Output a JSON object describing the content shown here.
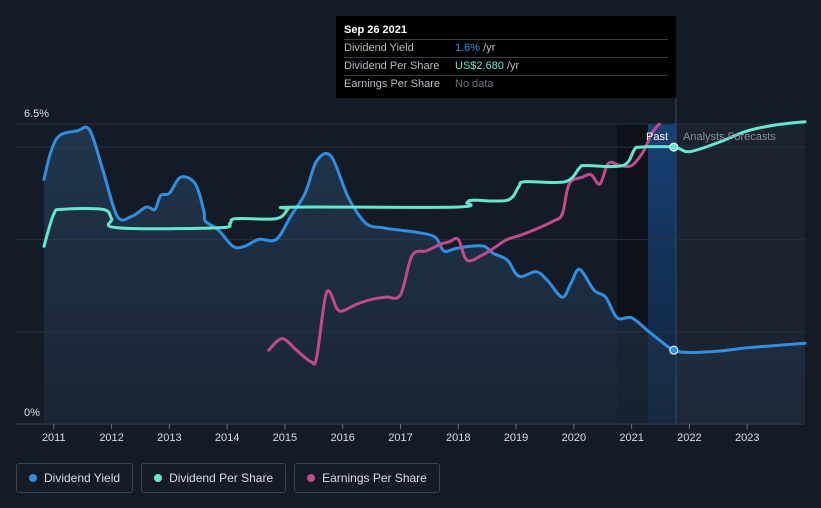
{
  "tooltip": {
    "date": "Sep 26 2021",
    "rows": [
      {
        "label": "Dividend Yield",
        "value": "1.6%",
        "unit": "/yr"
      },
      {
        "label": "Dividend Per Share",
        "value": "US$2.680",
        "unit": "/yr"
      },
      {
        "label": "Earnings Per Share",
        "value": "No data",
        "unit": ""
      }
    ]
  },
  "labels": {
    "past": "Past",
    "forecast": "Analysts Forecasts"
  },
  "legend": [
    {
      "label": "Dividend Yield",
      "color": "#2f8fe0"
    },
    {
      "label": "Dividend Per Share",
      "color": "#63e8cf"
    },
    {
      "label": "Earnings Per Share",
      "color": "#c04b8c"
    }
  ],
  "chart_data": {
    "type": "line",
    "y_axis_labels": {
      "top": "6.5%",
      "bottom": "0%"
    },
    "ylim": [
      0,
      6.5
    ],
    "xlim": [
      2010.9,
      2024.0
    ],
    "x_ticks": [
      "2011",
      "2012",
      "2013",
      "2014",
      "2015",
      "2016",
      "2017",
      "2018",
      "2019",
      "2020",
      "2021",
      "2022",
      "2023"
    ],
    "past_end": 2021.73,
    "highlight_start": 2020.7,
    "series": [
      {
        "name": "Dividend Yield",
        "color": "#2f8fe0",
        "fill": true,
        "points": [
          [
            2010.83,
            5.3
          ],
          [
            2010.95,
            5.9
          ],
          [
            2011.1,
            6.25
          ],
          [
            2011.4,
            6.35
          ],
          [
            2011.62,
            6.37
          ],
          [
            2011.85,
            5.5
          ],
          [
            2012.1,
            4.5
          ],
          [
            2012.35,
            4.5
          ],
          [
            2012.6,
            4.7
          ],
          [
            2012.75,
            4.65
          ],
          [
            2012.85,
            4.95
          ],
          [
            2013.0,
            5.0
          ],
          [
            2013.2,
            5.35
          ],
          [
            2013.45,
            5.2
          ],
          [
            2013.6,
            4.6
          ],
          [
            2013.62,
            4.4
          ],
          [
            2013.85,
            4.2
          ],
          [
            2014.1,
            3.85
          ],
          [
            2014.3,
            3.85
          ],
          [
            2014.55,
            4.0
          ],
          [
            2014.85,
            4.0
          ],
          [
            2015.1,
            4.5
          ],
          [
            2015.35,
            5.0
          ],
          [
            2015.55,
            5.7
          ],
          [
            2015.8,
            5.8
          ],
          [
            2016.1,
            4.9
          ],
          [
            2016.4,
            4.35
          ],
          [
            2016.7,
            4.25
          ],
          [
            2017.0,
            4.2
          ],
          [
            2017.3,
            4.15
          ],
          [
            2017.6,
            4.05
          ],
          [
            2017.75,
            3.75
          ],
          [
            2017.95,
            3.8
          ],
          [
            2018.2,
            3.85
          ],
          [
            2018.45,
            3.85
          ],
          [
            2018.6,
            3.7
          ],
          [
            2018.85,
            3.55
          ],
          [
            2019.05,
            3.2
          ],
          [
            2019.35,
            3.3
          ],
          [
            2019.55,
            3.1
          ],
          [
            2019.8,
            2.75
          ],
          [
            2019.95,
            3.05
          ],
          [
            2020.1,
            3.35
          ],
          [
            2020.35,
            2.9
          ],
          [
            2020.55,
            2.75
          ],
          [
            2020.75,
            2.3
          ],
          [
            2021.0,
            2.3
          ],
          [
            2021.3,
            2.0
          ],
          [
            2021.5,
            1.8
          ],
          [
            2021.73,
            1.6
          ],
          [
            2022.0,
            1.55
          ],
          [
            2022.5,
            1.58
          ],
          [
            2023.0,
            1.65
          ],
          [
            2023.5,
            1.7
          ],
          [
            2024.0,
            1.75
          ]
        ]
      },
      {
        "name": "Dividend Per Share",
        "color": "#63e8cf",
        "fill": false,
        "points": [
          [
            2010.83,
            3.85
          ],
          [
            2011.0,
            4.55
          ],
          [
            2011.15,
            4.65
          ],
          [
            2011.85,
            4.65
          ],
          [
            2012.0,
            4.45
          ],
          [
            2012.1,
            4.25
          ],
          [
            2013.85,
            4.25
          ],
          [
            2014.05,
            4.35
          ],
          [
            2014.15,
            4.45
          ],
          [
            2014.85,
            4.45
          ],
          [
            2015.05,
            4.65
          ],
          [
            2015.15,
            4.7
          ],
          [
            2017.95,
            4.7
          ],
          [
            2018.15,
            4.8
          ],
          [
            2018.25,
            4.85
          ],
          [
            2018.85,
            4.85
          ],
          [
            2019.05,
            5.15
          ],
          [
            2019.15,
            5.25
          ],
          [
            2019.85,
            5.25
          ],
          [
            2020.1,
            5.55
          ],
          [
            2020.2,
            5.6
          ],
          [
            2020.85,
            5.6
          ],
          [
            2021.05,
            5.95
          ],
          [
            2021.15,
            6.0
          ],
          [
            2021.73,
            6.0
          ],
          [
            2022.0,
            5.9
          ],
          [
            2022.5,
            6.1
          ],
          [
            2023.0,
            6.35
          ],
          [
            2023.5,
            6.48
          ],
          [
            2024.0,
            6.55
          ]
        ]
      },
      {
        "name": "Earnings Per Share",
        "color": "#c04b8c",
        "fill": false,
        "points": [
          [
            2014.72,
            1.6
          ],
          [
            2014.95,
            1.85
          ],
          [
            2015.2,
            1.6
          ],
          [
            2015.45,
            1.35
          ],
          [
            2015.55,
            1.45
          ],
          [
            2015.72,
            2.85
          ],
          [
            2015.9,
            2.5
          ],
          [
            2016.0,
            2.45
          ],
          [
            2016.25,
            2.6
          ],
          [
            2016.5,
            2.7
          ],
          [
            2016.75,
            2.75
          ],
          [
            2017.0,
            2.8
          ],
          [
            2017.2,
            3.65
          ],
          [
            2017.45,
            3.75
          ],
          [
            2017.7,
            3.9
          ],
          [
            2017.85,
            3.95
          ],
          [
            2018.0,
            4.0
          ],
          [
            2018.15,
            3.55
          ],
          [
            2018.4,
            3.65
          ],
          [
            2018.6,
            3.8
          ],
          [
            2018.85,
            4.0
          ],
          [
            2019.1,
            4.1
          ],
          [
            2019.4,
            4.25
          ],
          [
            2019.65,
            4.4
          ],
          [
            2019.8,
            4.55
          ],
          [
            2019.92,
            5.2
          ],
          [
            2020.15,
            5.35
          ],
          [
            2020.3,
            5.4
          ],
          [
            2020.45,
            5.2
          ],
          [
            2020.6,
            5.65
          ],
          [
            2020.8,
            5.6
          ],
          [
            2021.0,
            5.6
          ],
          [
            2021.2,
            5.9
          ],
          [
            2021.35,
            6.3
          ],
          [
            2021.48,
            6.5
          ]
        ]
      }
    ]
  }
}
